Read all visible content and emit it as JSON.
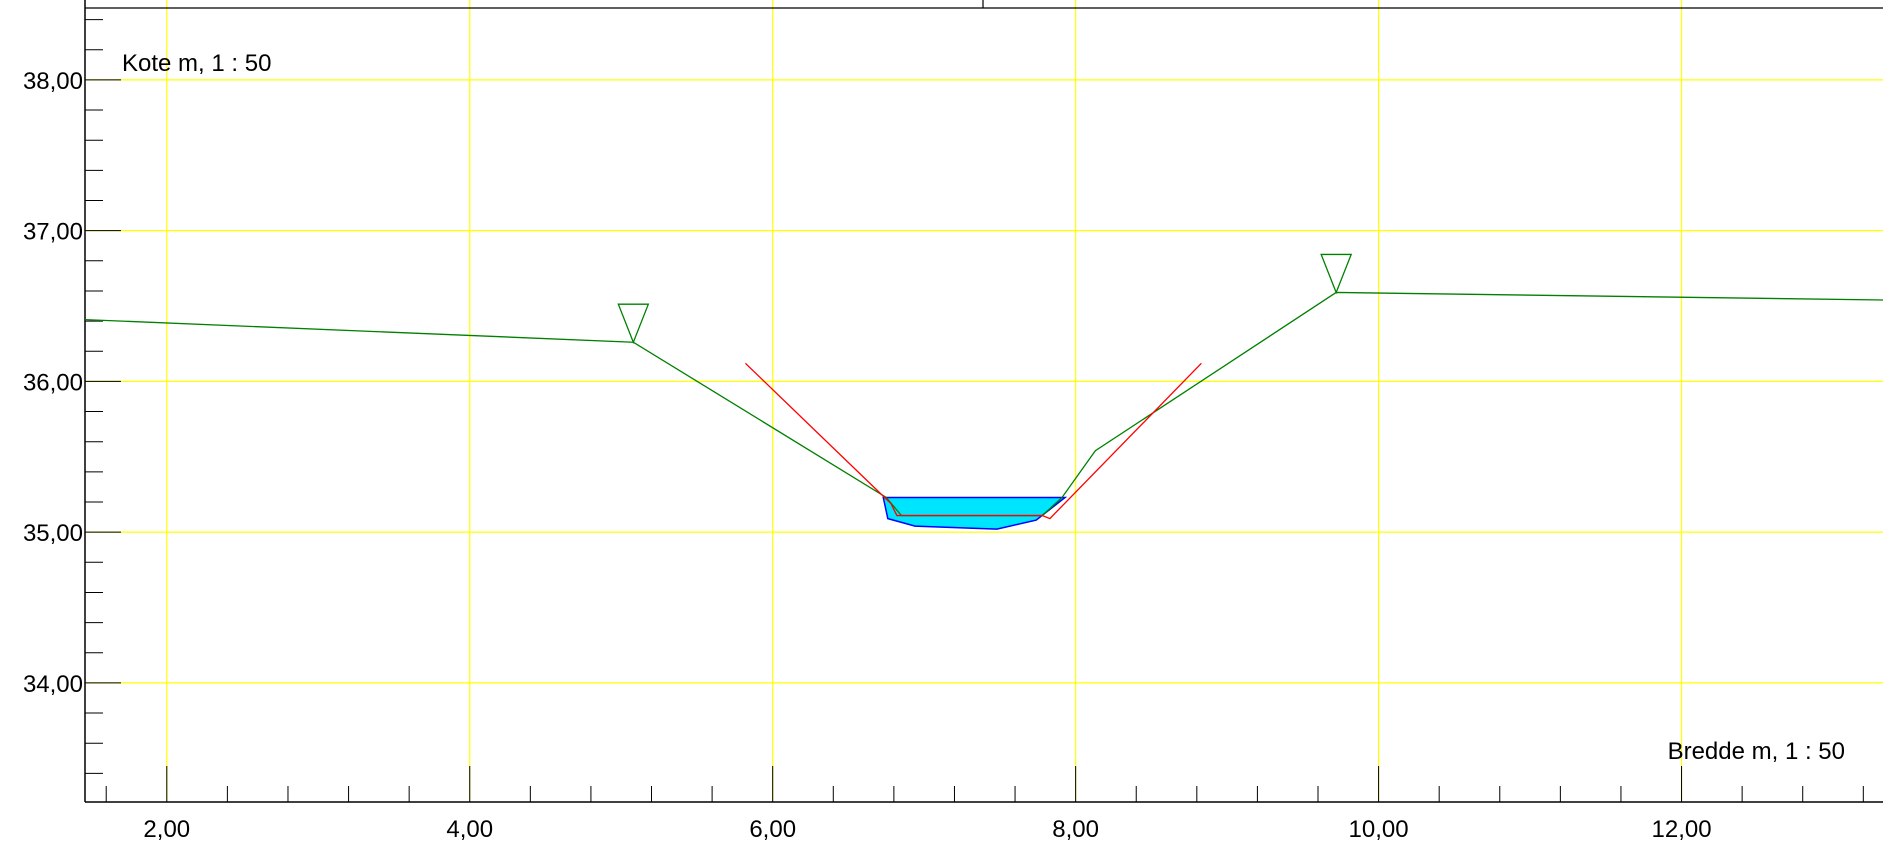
{
  "chart_data": {
    "type": "line",
    "title": "",
    "xlabel": "Bredde m, 1 : 50",
    "ylabel": "Kote m, 1 : 50",
    "xlim": [
      1.46,
      13.33
    ],
    "ylim": [
      33.21,
      38.53
    ],
    "grid": true,
    "x_ticks": [
      {
        "value": 2,
        "label": "2,00"
      },
      {
        "value": 4,
        "label": "4,00"
      },
      {
        "value": 6,
        "label": "6,00"
      },
      {
        "value": 8,
        "label": "8,00"
      },
      {
        "value": 10,
        "label": "10,00"
      },
      {
        "value": 12,
        "label": "12,00"
      }
    ],
    "y_ticks": [
      {
        "value": 34,
        "label": "34,00"
      },
      {
        "value": 35,
        "label": "35,00"
      },
      {
        "value": 36,
        "label": "36,00"
      },
      {
        "value": 37,
        "label": "37,00"
      },
      {
        "value": 38,
        "label": "38,00"
      }
    ],
    "series": [
      {
        "color": "#008000",
        "points": [
          [
            1.46,
            36.41
          ],
          [
            5.08,
            36.26
          ],
          [
            6.75,
            35.23
          ],
          [
            6.85,
            35.11
          ],
          [
            7.78,
            35.11
          ],
          [
            7.91,
            35.23
          ],
          [
            8.13,
            35.54
          ],
          [
            9.72,
            36.59
          ],
          [
            13.33,
            36.54
          ]
        ]
      },
      {
        "color": "#ff0000",
        "points": [
          [
            5.82,
            36.12
          ],
          [
            6.78,
            35.19
          ],
          [
            6.82,
            35.11
          ],
          [
            7.78,
            35.11
          ],
          [
            7.83,
            35.09
          ],
          [
            8.83,
            36.12
          ]
        ]
      }
    ],
    "water": {
      "fill": "#00e5ff",
      "stroke": "#0000ff",
      "level": 35.23,
      "polygon": [
        [
          6.73,
          35.23
        ],
        [
          7.93,
          35.23
        ],
        [
          7.74,
          35.08
        ],
        [
          7.48,
          35.02
        ],
        [
          6.94,
          35.04
        ],
        [
          6.76,
          35.09
        ]
      ]
    },
    "markers": [
      {
        "type": "triangle-down",
        "color": "#008000",
        "x": 5.08,
        "y": 36.26
      },
      {
        "type": "triangle-down",
        "color": "#008000",
        "x": 9.72,
        "y": 36.59
      }
    ],
    "colors": {
      "grid": "#ffff00",
      "axis": "#000000"
    }
  }
}
